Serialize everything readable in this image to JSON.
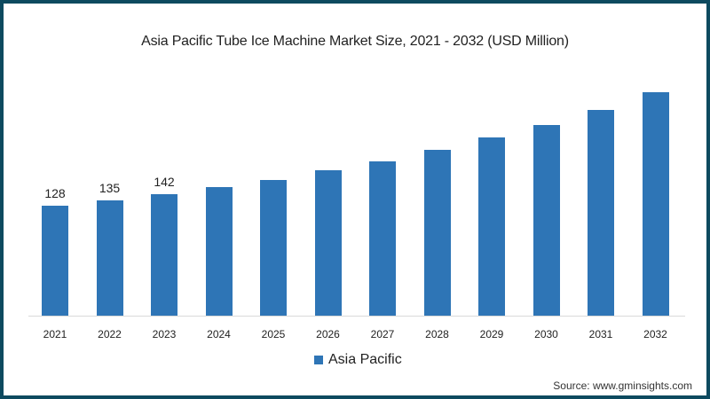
{
  "chart_data": {
    "type": "bar",
    "title": "Asia Pacific Tube Ice Machine Market Size, 2021 - 2032 (USD Million)",
    "xlabel": "",
    "ylabel": "",
    "categories": [
      "2021",
      "2022",
      "2023",
      "2024",
      "2025",
      "2026",
      "2027",
      "2028",
      "2029",
      "2030",
      "2031",
      "2032"
    ],
    "series": [
      {
        "name": "Asia Pacific",
        "color": "#2e75b6",
        "values": [
          128,
          135,
          142,
          150,
          158,
          170,
          180,
          194,
          208,
          223,
          240,
          261
        ]
      }
    ],
    "data_labels": {
      "2021": "128",
      "2022": "135",
      "2023": "142"
    },
    "ylim": [
      0,
      270
    ],
    "grid": false,
    "legend_position": "bottom"
  },
  "labels": {
    "title": "Asia Pacific Tube Ice Machine Market Size, 2021 - 2032 (USD Million)",
    "legend": "Asia Pacific",
    "source": "Source: www.gminsights.com"
  },
  "colors": {
    "bar": "#2e75b6",
    "border": "#0d4a5f"
  }
}
